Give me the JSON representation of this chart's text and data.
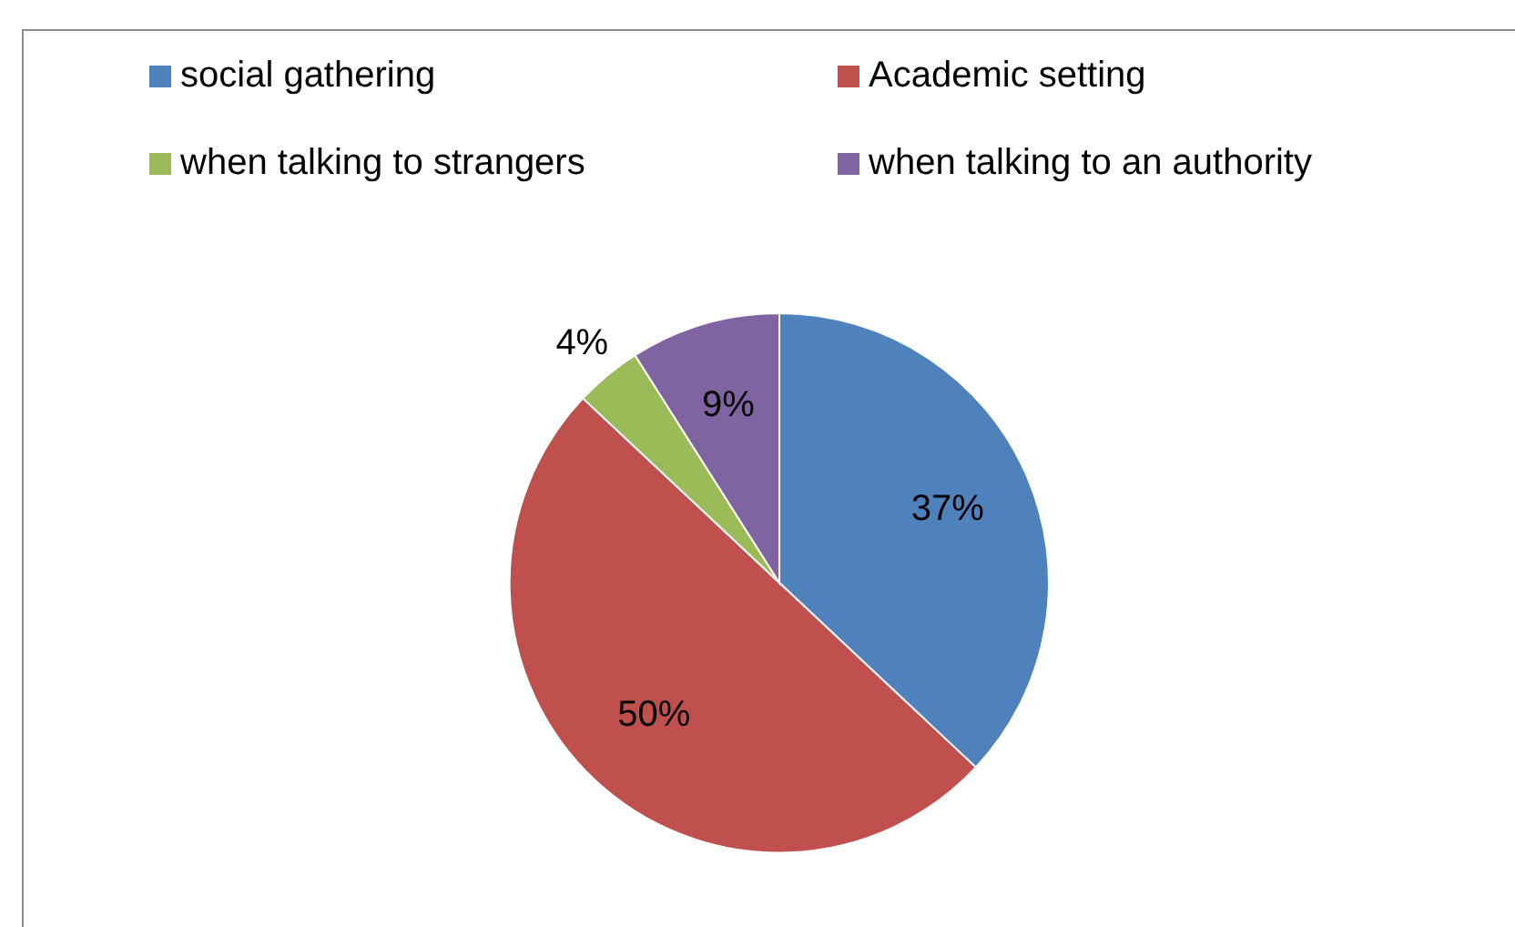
{
  "chart_data": {
    "type": "pie",
    "categories": [
      "social gathering",
      "Academic setting",
      "when talking to strangers",
      "when talking to an authority"
    ],
    "values": [
      37,
      50,
      4,
      9
    ],
    "colors": [
      "#4f81bd",
      "#c0504d",
      "#9bbb59",
      "#8064a2"
    ],
    "value_labels": [
      "37%",
      "50%",
      "4%",
      "9%"
    ],
    "legend": "top"
  }
}
